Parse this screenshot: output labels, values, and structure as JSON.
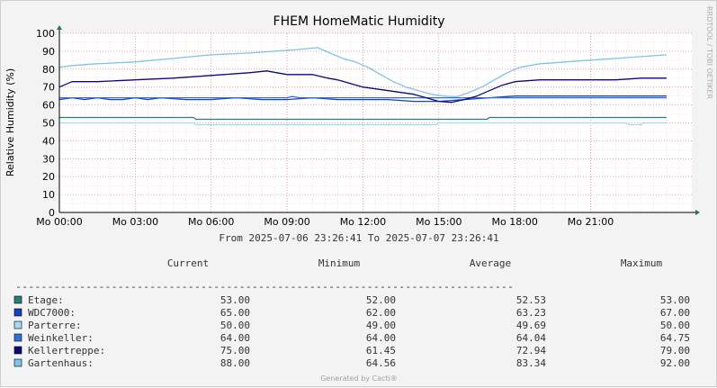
{
  "chart_data": {
    "type": "line",
    "title": "FHEM HomeMatic Humidity",
    "ylabel": "Relative Humidity (%)",
    "ylim": [
      0,
      100
    ],
    "yticks": [
      0,
      10,
      20,
      30,
      40,
      50,
      60,
      70,
      80,
      90,
      100
    ],
    "xlim": [
      0,
      25
    ],
    "x_tick_labels": [
      "Mo 00:00",
      "Mo 03:00",
      "Mo 06:00",
      "Mo 09:00",
      "Mo 12:00",
      "Mo 15:00",
      "Mo 18:00",
      "Mo 21:00"
    ],
    "x_tick_hours": [
      0,
      3,
      6,
      9,
      12,
      15,
      18,
      21
    ],
    "grid": true,
    "side_label": "RRDTOOL / TOBI OETIKER",
    "range_text": "From 2025-07-06 23:26:41 To 2025-07-07 23:26:41",
    "columns": [
      "Current",
      "Minimum",
      "Average",
      "Maximum"
    ],
    "separator": "------------------------------------------------------------------------------",
    "footer": "Generated by Cacti®",
    "series": [
      {
        "name": "Etage:",
        "color": "#2e7d7d",
        "current": "53.00",
        "minimum": "52.00",
        "average": "52.53",
        "maximum": "53.00",
        "x": [
          0,
          5.3,
          5.4,
          16.9,
          17.0,
          24.0
        ],
        "y": [
          53,
          53,
          52,
          52,
          53,
          53
        ]
      },
      {
        "name": "WDC7000:",
        "color": "#1a3fbf",
        "current": "65.00",
        "minimum": "62.00",
        "average": "63.23",
        "maximum": "67.00",
        "x": [
          0,
          0.5,
          1,
          1.5,
          2,
          2.5,
          3,
          3.5,
          4,
          5,
          6,
          7,
          8,
          9,
          10,
          11,
          12,
          13,
          14,
          15,
          16,
          17,
          18,
          19,
          20,
          21,
          22,
          23,
          24
        ],
        "y": [
          63,
          64,
          63,
          64,
          63,
          63,
          64,
          63,
          64,
          63,
          63,
          64,
          63,
          63,
          64,
          63,
          63,
          63,
          62,
          62,
          63,
          64,
          65,
          65,
          65,
          65,
          65,
          65,
          65
        ]
      },
      {
        "name": "Parterre:",
        "color": "#a6d8ee",
        "current": "50.00",
        "minimum": "49.00",
        "average": "49.69",
        "maximum": "50.00",
        "x": [
          0,
          5.3,
          5.4,
          14.9,
          15.0,
          22.4,
          22.5,
          23.0,
          23.1,
          24.0
        ],
        "y": [
          50,
          50,
          49,
          49,
          50,
          50,
          49,
          49,
          50,
          50
        ]
      },
      {
        "name": "Weinkeller:",
        "color": "#2f72d4",
        "current": "64.00",
        "minimum": "64.00",
        "average": "64.04",
        "maximum": "64.75",
        "x": [
          0,
          3,
          6,
          9,
          9.2,
          9.5,
          12,
          15,
          18,
          21,
          24
        ],
        "y": [
          64,
          64,
          64,
          64,
          64.75,
          64,
          64,
          64,
          64,
          64,
          64
        ]
      },
      {
        "name": "Kellertreppe:",
        "color": "#0a0a78",
        "current": "75.00",
        "minimum": "61.45",
        "average": "72.94",
        "maximum": "79.00",
        "x": [
          0,
          0.5,
          1.5,
          3,
          4.5,
          5.5,
          6.5,
          7.5,
          8.2,
          9,
          10,
          10.3,
          10.6,
          11,
          11.5,
          12,
          12.5,
          13,
          13.5,
          14,
          14.5,
          15,
          15.5,
          16,
          16.5,
          17,
          17.5,
          18,
          19,
          20,
          21,
          22,
          23,
          24
        ],
        "y": [
          70,
          73,
          73,
          74,
          75,
          76,
          77,
          78,
          79,
          77,
          77,
          76,
          75,
          74,
          72,
          70,
          69,
          68,
          67,
          66,
          64,
          62,
          61.45,
          63,
          65,
          68,
          71,
          73,
          74,
          74,
          74,
          74,
          75,
          75
        ]
      },
      {
        "name": "Gartenhaus:",
        "color": "#7ec3e8",
        "current": "88.00",
        "minimum": "64.56",
        "average": "83.34",
        "maximum": "92.00",
        "x": [
          0,
          0.5,
          1.5,
          3,
          4.5,
          6,
          7.5,
          8.5,
          9.5,
          10.2,
          10.7,
          11.2,
          11.7,
          12.2,
          12.7,
          13.2,
          13.7,
          14.2,
          14.7,
          15.2,
          15.7,
          16.2,
          16.7,
          17.2,
          17.7,
          18.2,
          19,
          20,
          21,
          22,
          23,
          24
        ],
        "y": [
          81,
          82,
          83,
          84,
          86,
          88,
          89,
          90,
          91,
          92,
          89,
          86,
          84,
          81,
          77,
          73,
          70,
          68,
          66,
          65,
          64.56,
          67,
          70,
          74,
          78,
          81,
          83,
          84,
          85,
          86,
          87,
          88
        ]
      }
    ]
  }
}
